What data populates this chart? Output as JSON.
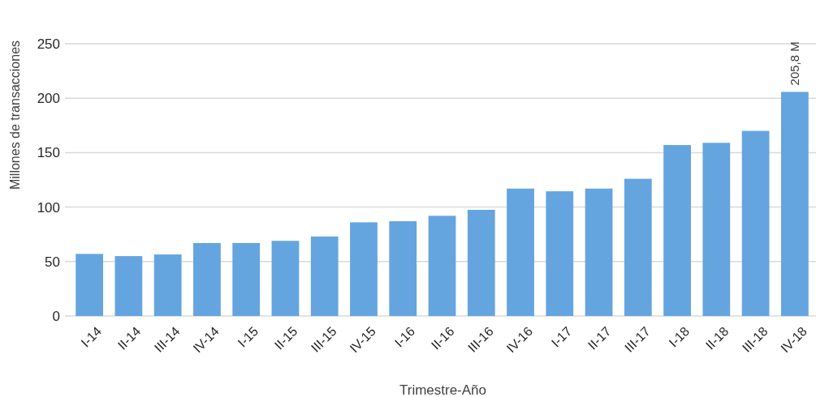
{
  "chart_data": {
    "type": "bar",
    "xlabel": "Trimestre-Año",
    "ylabel": "Millones de transacciones",
    "categories": [
      "I-14",
      "II-14",
      "III-14",
      "IV-14",
      "I-15",
      "II-15",
      "III-15",
      "IV-15",
      "I-16",
      "II-16",
      "III-16",
      "IV-16",
      "I-17",
      "II-17",
      "III-17",
      "I-18",
      "II-18",
      "III-18",
      "IV-18"
    ],
    "values": [
      57,
      55,
      56.5,
      67,
      67,
      69,
      73,
      86,
      87,
      92,
      97.5,
      117,
      114.5,
      117,
      126,
      157,
      159,
      170,
      205.8
    ],
    "value_labels": [
      null,
      null,
      null,
      null,
      null,
      null,
      null,
      null,
      null,
      null,
      null,
      null,
      null,
      null,
      null,
      null,
      null,
      null,
      "205,8 M"
    ],
    "color": "#64a5e0",
    "ylim": [
      0,
      250
    ],
    "yticks": [
      0,
      50,
      100,
      150,
      200,
      250
    ],
    "grid": "y"
  }
}
